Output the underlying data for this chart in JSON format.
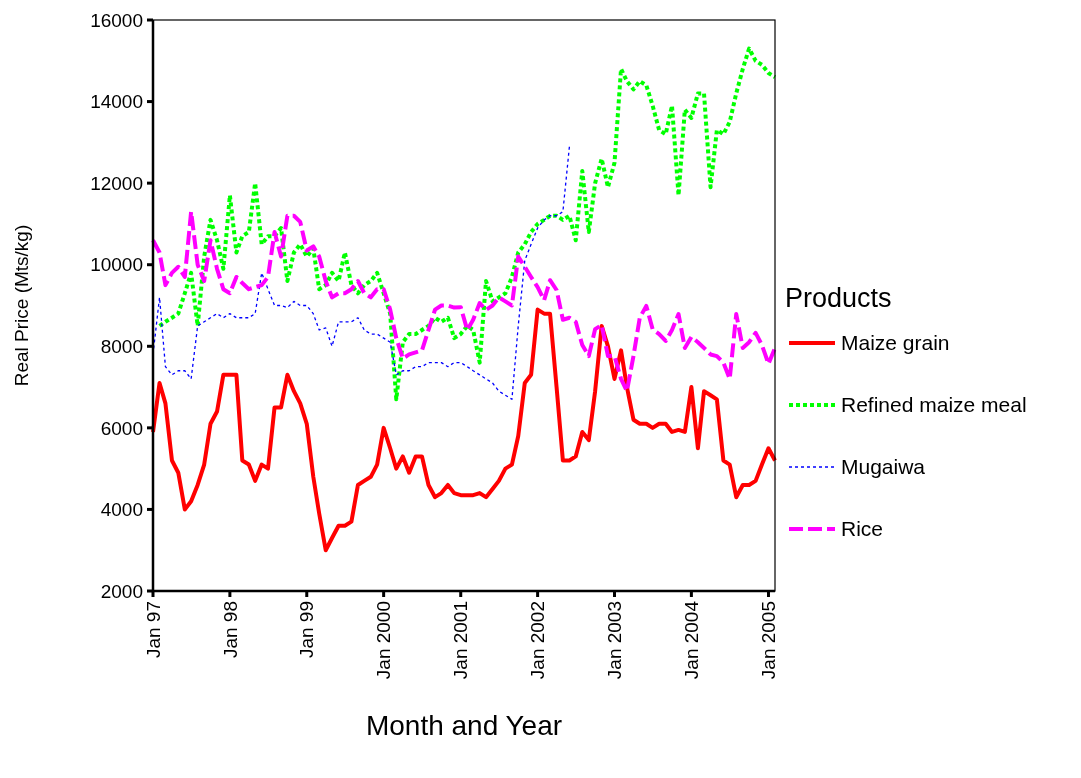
{
  "chart_data": {
    "type": "line",
    "xlabel": "Month and Year",
    "ylabel": "Real Price (Mts/kg)",
    "legend_title": "Products",
    "legend": "right",
    "grid": false,
    "ylim": [
      2000,
      16000
    ],
    "yticks": [
      2000,
      4000,
      6000,
      8000,
      10000,
      12000,
      14000,
      16000
    ],
    "xlim": [
      "1997-01",
      "2005-02"
    ],
    "x": [
      "1997-01",
      "1997-02",
      "1997-03",
      "1997-04",
      "1997-05",
      "1997-06",
      "1997-07",
      "1997-08",
      "1997-09",
      "1997-10",
      "1997-11",
      "1997-12",
      "1998-01",
      "1998-02",
      "1998-03",
      "1998-04",
      "1998-05",
      "1998-06",
      "1998-07",
      "1998-08",
      "1998-09",
      "1998-10",
      "1998-11",
      "1998-12",
      "1999-01",
      "1999-02",
      "1999-03",
      "1999-04",
      "1999-05",
      "1999-06",
      "1999-07",
      "1999-08",
      "1999-09",
      "1999-10",
      "1999-11",
      "1999-12",
      "2000-01",
      "2000-02",
      "2000-03",
      "2000-04",
      "2000-05",
      "2000-06",
      "2000-07",
      "2000-08",
      "2000-09",
      "2000-10",
      "2000-11",
      "2000-12",
      "2001-01",
      "2001-02",
      "2001-03",
      "2001-04",
      "2001-05",
      "2001-06",
      "2001-07",
      "2001-08",
      "2001-09",
      "2001-10",
      "2001-11",
      "2001-12",
      "2002-01",
      "2002-02",
      "2002-03",
      "2002-04",
      "2002-05",
      "2002-06",
      "2002-07",
      "2002-08",
      "2002-09",
      "2002-10",
      "2002-11",
      "2002-12",
      "2003-01",
      "2003-02",
      "2003-03",
      "2003-04",
      "2003-05",
      "2003-06",
      "2003-07",
      "2003-08",
      "2003-09",
      "2003-10",
      "2003-11",
      "2003-12",
      "2004-01",
      "2004-02",
      "2004-03",
      "2004-04",
      "2004-05",
      "2004-06",
      "2004-07",
      "2004-08",
      "2004-09",
      "2004-10",
      "2004-11",
      "2004-12",
      "2005-01",
      "2005-02"
    ],
    "xticks": [
      {
        "value": "1997-01",
        "label": "Jan 97"
      },
      {
        "value": "1998-01",
        "label": "Jan 98"
      },
      {
        "value": "1999-01",
        "label": "Jan 99"
      },
      {
        "value": "2000-01",
        "label": "Jan 2000"
      },
      {
        "value": "2001-01",
        "label": "Jan 2001"
      },
      {
        "value": "2002-01",
        "label": "Jan 2002"
      },
      {
        "value": "2003-01",
        "label": "Jan 2003"
      },
      {
        "value": "2004-01",
        "label": "Jan 2004"
      },
      {
        "value": "2005-01",
        "label": "Jan 2005"
      }
    ],
    "series": [
      {
        "name": "Maize grain",
        "color": "#ff0000",
        "line_style": "solid",
        "values": [
          5900,
          7100,
          6600,
          5200,
          4900,
          4000,
          4200,
          4600,
          5100,
          6100,
          6400,
          7300,
          7300,
          7300,
          5200,
          5100,
          4700,
          5100,
          5000,
          6500,
          6500,
          7300,
          6900,
          6600,
          6100,
          4800,
          3900,
          3000,
          3300,
          3600,
          3600,
          3700,
          4600,
          4700,
          4800,
          5100,
          6000,
          5500,
          5000,
          5300,
          4900,
          5300,
          5300,
          4600,
          4300,
          4400,
          4600,
          4400,
          4350,
          4350,
          4350,
          4400,
          4300,
          4500,
          4700,
          5000,
          5100,
          5800,
          7100,
          7300,
          8900,
          8800,
          8800,
          7000,
          5200,
          5200,
          5300,
          5900,
          5700,
          6900,
          8500,
          8000,
          7200,
          7900,
          7000,
          6200,
          6100,
          6100,
          6000,
          6100,
          6100,
          5900,
          5950,
          5900,
          7000,
          5500,
          6900,
          6800,
          6700,
          5200,
          5100,
          4300,
          4600,
          4600,
          4700,
          5100,
          5500,
          5200
        ]
      },
      {
        "name": "Refined maize meal",
        "color": "#00ff00",
        "line_style": "dotted",
        "values": [
          null,
          8500,
          8600,
          8700,
          8800,
          9300,
          9800,
          8500,
          10200,
          11100,
          10600,
          9900,
          11700,
          10300,
          10700,
          10800,
          12000,
          10500,
          10700,
          10700,
          10900,
          9600,
          10300,
          10500,
          10200,
          10400,
          9400,
          9500,
          9800,
          9600,
          10300,
          9500,
          9300,
          9500,
          9600,
          9800,
          9300,
          8800,
          6700,
          8100,
          8300,
          8300,
          8400,
          8500,
          8700,
          8600,
          8700,
          8200,
          8300,
          8500,
          8400,
          7600,
          9600,
          9100,
          9200,
          9300,
          9700,
          10300,
          10500,
          10800,
          11000,
          11100,
          11200,
          11200,
          11100,
          11200,
          10600,
          12300,
          10800,
          12000,
          12600,
          11900,
          12500,
          14800,
          14500,
          14300,
          14500,
          14400,
          13900,
          13300,
          13200,
          13900,
          11700,
          13800,
          13600,
          14200,
          14200,
          11900,
          13300,
          13200,
          13500,
          14200,
          14800,
          15300,
          15000,
          14900,
          14700,
          14600
        ]
      },
      {
        "name": "Mugaiwa",
        "color": "#0000ff",
        "line_style": "dashed",
        "values": [
          7800,
          9200,
          7500,
          7300,
          7400,
          7400,
          7200,
          8500,
          8600,
          8700,
          8800,
          8700,
          8800,
          8700,
          8700,
          8700,
          8800,
          9800,
          9400,
          9000,
          9000,
          8950,
          9100,
          9000,
          9000,
          8800,
          8400,
          8450,
          8000,
          8600,
          8600,
          8600,
          8700,
          8400,
          8300,
          8300,
          8200,
          8100,
          7300,
          7400,
          7400,
          7500,
          7500,
          7600,
          7600,
          7600,
          7500,
          7600,
          7600,
          7500,
          7400,
          7300,
          7200,
          7100,
          6900,
          6800,
          6700,
          8500,
          10100,
          10500,
          10900,
          11100,
          11200,
          11200,
          11300,
          12900,
          null,
          null,
          null,
          null,
          null,
          null,
          null,
          null,
          null,
          null,
          null,
          null,
          null,
          null,
          null,
          null,
          null,
          null,
          null,
          null,
          null,
          null,
          null,
          null,
          null,
          null,
          null,
          null,
          null,
          null,
          null,
          null
        ]
      },
      {
        "name": "Rice",
        "color": "#ff00ff",
        "line_style": "dashed",
        "values": [
          10600,
          10300,
          9500,
          9800,
          9950,
          9700,
          11300,
          10000,
          9600,
          10600,
          9900,
          9400,
          9300,
          9700,
          9550,
          9400,
          9450,
          9500,
          9700,
          10800,
          10200,
          11200,
          11200,
          11050,
          10350,
          10450,
          10200,
          9600,
          9200,
          9300,
          9300,
          9400,
          9600,
          9300,
          9200,
          9400,
          9400,
          8900,
          8200,
          7700,
          7800,
          7850,
          7900,
          8400,
          8900,
          9000,
          9000,
          8950,
          8960,
          8400,
          8650,
          9060,
          8890,
          9000,
          9200,
          9100,
          9000,
          10200,
          9950,
          9700,
          9450,
          9130,
          9620,
          9380,
          8650,
          8700,
          8600,
          8030,
          7760,
          8420,
          8520,
          7760,
          7760,
          7200,
          6900,
          7760,
          8700,
          8990,
          8420,
          8300,
          8130,
          8400,
          8790,
          7960,
          8230,
          8100,
          7960,
          7800,
          7760,
          7600,
          7200,
          8790,
          7960,
          8100,
          8330,
          8030,
          7570,
          7960
        ]
      }
    ]
  }
}
